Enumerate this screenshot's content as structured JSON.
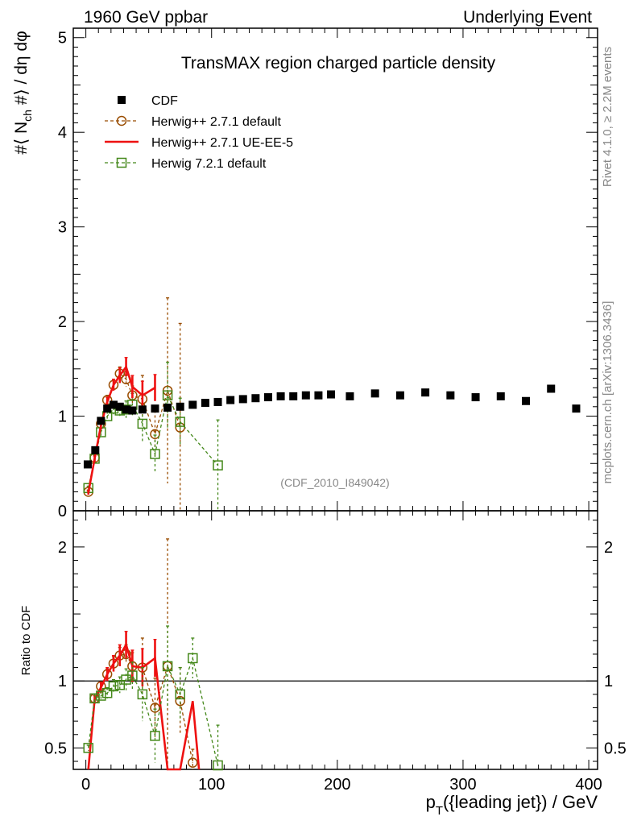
{
  "header": {
    "left": "1960 GeV ppbar",
    "right": "Underlying Event"
  },
  "side_labels": {
    "rivet": "Rivet 4.1.0, ≥ 2.2M events",
    "mcplots": "mcplots.cern.ch [arXiv:1306.3436]"
  },
  "chart_data": {
    "type": "scatter",
    "title": "TransMAX region charged particle density",
    "ylabel": "#⟨ N_ch #⟩ / dη dφ",
    "ylabel_main": "#⟨ N",
    "ylabel_sub": "ch",
    "ylabel_tail": " #⟩ / dη dφ",
    "xlabel": "p_T({leading jet}) / GeV",
    "xlabel_p": "p",
    "xlabel_sub": "T",
    "xlabel_tail": "({leading jet}) / GeV",
    "ratio_ylabel": "Ratio to CDF",
    "watermark": "(CDF_2010_I849042)",
    "xlim": [
      -10,
      407
    ],
    "ylim": [
      0,
      5.1
    ],
    "ratio_ylim": [
      0.34,
      2.27
    ],
    "x_ticks": [
      0,
      100,
      200,
      300,
      400
    ],
    "x_tick_labels": [
      "0",
      "100",
      "200",
      "300",
      "400"
    ],
    "y_ticks": [
      0,
      1,
      2,
      3,
      4,
      5
    ],
    "y_tick_labels": [
      "0",
      "1",
      "2",
      "3",
      "4",
      "5"
    ],
    "ratio_ticks": [
      0.5,
      1,
      2
    ],
    "ratio_tick_labels": [
      "0.5",
      "1",
      "2"
    ],
    "legend": [
      "CDF",
      "Herwig++ 2.7.1 default",
      "Herwig++ 2.7.1 UE-EE-5",
      "Herwig 7.2.1 default"
    ],
    "series": [
      {
        "name": "CDF",
        "style": "data",
        "color": "#000000",
        "x": [
          1.5,
          7.5,
          12,
          17,
          22,
          27,
          32,
          37,
          45,
          55,
          65,
          75,
          85,
          95,
          105,
          115,
          125,
          135,
          145,
          155,
          165,
          175,
          185,
          195,
          210,
          230,
          250,
          270,
          290,
          310,
          330,
          350,
          370,
          390
        ],
        "y": [
          0.49,
          0.64,
          0.95,
          1.08,
          1.12,
          1.1,
          1.07,
          1.06,
          1.07,
          1.08,
          1.09,
          1.1,
          1.12,
          1.14,
          1.15,
          1.17,
          1.18,
          1.19,
          1.2,
          1.21,
          1.21,
          1.22,
          1.22,
          1.23,
          1.21,
          1.24,
          1.22,
          1.25,
          1.22,
          1.2,
          1.21,
          1.16,
          1.29,
          1.08
        ]
      },
      {
        "name": "Herwig++ 2.7.1 default",
        "style": "dashed-circle",
        "color": "#994c00",
        "x": [
          2,
          7,
          12,
          17,
          22,
          27,
          32,
          37,
          45,
          55,
          65,
          75
        ],
        "y": [
          0.2,
          0.56,
          0.92,
          1.17,
          1.33,
          1.45,
          1.39,
          1.22,
          1.18,
          0.81,
          1.27,
          0.88
        ],
        "err": [
          0.02,
          0.03,
          0.04,
          0.05,
          0.06,
          0.07,
          0.08,
          0.1,
          0.25,
          0.25,
          0.98,
          1.1
        ]
      },
      {
        "name": "Herwig++ 2.7.1 UE-EE-5",
        "style": "solid",
        "color": "#ee1111",
        "x": [
          2,
          7,
          12,
          17,
          22,
          27,
          32,
          37,
          45,
          55
        ],
        "y": [
          0.19,
          0.55,
          0.9,
          1.15,
          1.33,
          1.43,
          1.52,
          1.31,
          1.22,
          1.3
        ],
        "err": [
          0.02,
          0.03,
          0.04,
          0.05,
          0.06,
          0.08,
          0.1,
          0.12,
          0.15,
          0.14
        ]
      },
      {
        "name": "Herwig 7.2.1 default",
        "style": "dashed-square",
        "color": "#44881a",
        "x": [
          2,
          7,
          12,
          17,
          22,
          27,
          32,
          37,
          45,
          55,
          65,
          75,
          105
        ],
        "y": [
          0.24,
          0.55,
          0.83,
          1.0,
          1.08,
          1.06,
          1.07,
          1.12,
          0.92,
          0.6,
          1.22,
          0.94,
          0.48
        ],
        "err": [
          0.02,
          0.03,
          0.04,
          0.05,
          0.06,
          0.07,
          0.09,
          0.12,
          0.2,
          0.2,
          0.35,
          0.25,
          0.48
        ]
      }
    ],
    "ratio_series": [
      {
        "name": "Herwig++ 2.7.1 default",
        "style": "dashed-circle",
        "color": "#994c00",
        "x": [
          7,
          12,
          17,
          22,
          27,
          32,
          37,
          45,
          55,
          65,
          75,
          85
        ],
        "y": [
          0.87,
          0.96,
          1.05,
          1.13,
          1.19,
          1.2,
          1.11,
          1.1,
          0.8,
          1.11,
          0.85,
          0.39
        ],
        "err": [
          0.03,
          0.03,
          0.04,
          0.05,
          0.06,
          0.07,
          0.1,
          0.22,
          0.22,
          0.95,
          0.25,
          0.1
        ]
      },
      {
        "name": "Herwig++ 2.7.1 UE-EE-5",
        "style": "solid",
        "color": "#ee1111",
        "x": [
          2,
          7,
          12,
          17,
          22,
          27,
          32,
          37,
          45,
          55,
          65,
          75,
          85,
          90
        ],
        "y": [
          0.3,
          0.86,
          0.95,
          1.05,
          1.13,
          1.19,
          1.27,
          1.11,
          1.1,
          1.17,
          0.3,
          0.3,
          0.85,
          0.3
        ],
        "err": [
          0,
          0.03,
          0.04,
          0.05,
          0.06,
          0.08,
          0.1,
          0.12,
          0.14,
          0.14,
          0,
          0,
          0,
          0
        ]
      },
      {
        "name": "Herwig 7.2.1 default",
        "style": "dashed-square",
        "color": "#44881a",
        "x": [
          2,
          7,
          12,
          17,
          22,
          27,
          32,
          37,
          45,
          55,
          65,
          75,
          85,
          105
        ],
        "y": [
          0.5,
          0.87,
          0.89,
          0.91,
          0.96,
          0.97,
          1.01,
          1.04,
          0.9,
          0.59,
          1.11,
          0.9,
          1.17,
          0.37
        ],
        "err": [
          0.02,
          0.03,
          0.03,
          0.04,
          0.05,
          0.06,
          0.08,
          0.1,
          0.2,
          0.2,
          0.3,
          0.2,
          0.15,
          0.3
        ]
      }
    ]
  }
}
